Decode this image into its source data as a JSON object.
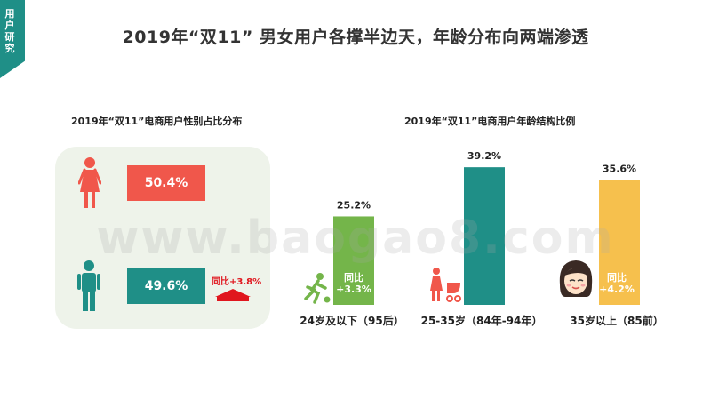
{
  "section_tag": "用户研究",
  "title": "2019年“双11” 男女用户各撑半边天，年龄分布向两端渗透",
  "gender": {
    "subtitle": "2019年“双11”电商用户性别占比分布",
    "female_label": "50.4%",
    "male_label": "49.6%",
    "yoy": "同比+3.8%",
    "colors": {
      "female": "#f0574b",
      "male": "#1f8f87",
      "panel": "#eef3ea"
    }
  },
  "age": {
    "subtitle": "2019年“双11”电商用户年龄结构比例",
    "yoy_a_title": "同比",
    "yoy_a_value": "+3.3%",
    "yoy_c_title": "同比",
    "yoy_c_value": "+4.2%"
  },
  "watermark": "www.baogao8.com",
  "chart_data": {
    "type": "bar",
    "title": "2019年“双11”电商用户年龄结构比例",
    "categories": [
      "24岁及以下（95后）",
      "25-35岁（84年-94年）",
      "35岁以上（85前）"
    ],
    "values": [
      25.2,
      39.2,
      35.6
    ],
    "value_labels": [
      "25.2%",
      "39.2%",
      "35.6%"
    ],
    "colors": [
      "#74b54a",
      "#1f8f87",
      "#f6c04d"
    ],
    "ylim": [
      0,
      40
    ]
  }
}
